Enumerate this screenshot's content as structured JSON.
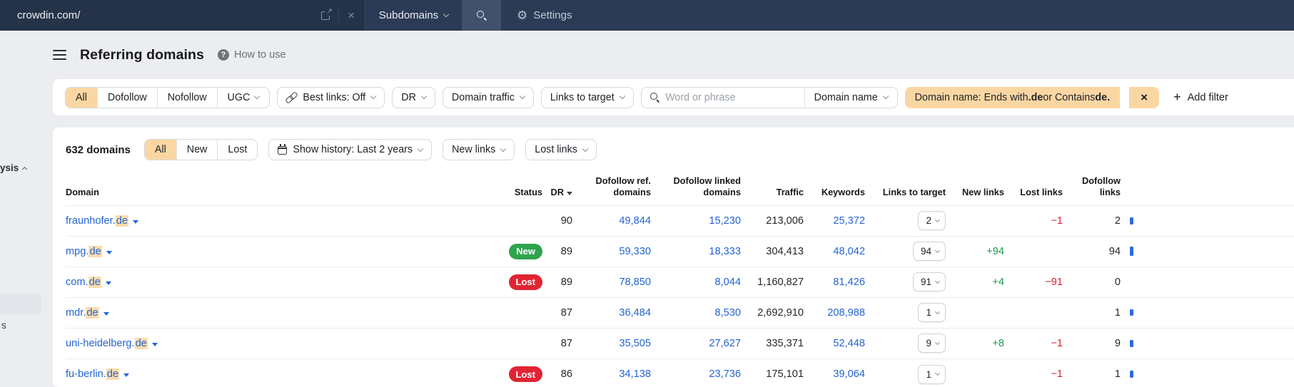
{
  "topbar": {
    "url_value": "crowdin.com/",
    "mode_label": "Subdomains",
    "settings_label": "Settings"
  },
  "icons": {
    "external_arrow": "↗",
    "close": "×",
    "gear": "⚙",
    "question": "?",
    "plus": "+"
  },
  "sidebar": {
    "collapsed_label": "ysis",
    "collapsed_item": "s"
  },
  "header": {
    "title": "Referring domains",
    "help_label": "How to use"
  },
  "filters": {
    "tabs": [
      {
        "label": "All",
        "active": true
      },
      {
        "label": "Dofollow",
        "active": false
      },
      {
        "label": "Nofollow",
        "active": false
      },
      {
        "label": "UGC",
        "active": false
      }
    ],
    "best_links_label": "Best links: Off",
    "dr_label": "DR",
    "domain_traffic_label": "Domain traffic",
    "links_to_target_label": "Links to target",
    "search_placeholder": "Word or phrase",
    "domain_name_label": "Domain name",
    "active_filter": {
      "part1": "Domain name: Ends with ",
      "bold1": ".de",
      "part2": " or Contains ",
      "bold2": "de."
    },
    "add_filter_label": "Add filter"
  },
  "toolbar": {
    "count": "632 domains",
    "tabs": [
      {
        "label": "All",
        "active": true
      },
      {
        "label": "New",
        "active": false
      },
      {
        "label": "Lost",
        "active": false
      }
    ],
    "show_history_label": "Show history: Last 2 years",
    "new_links_label": "New links",
    "lost_links_label": "Lost links"
  },
  "table": {
    "columns": [
      {
        "label": "Domain"
      },
      {
        "label": "Status"
      },
      {
        "label": "DR"
      },
      {
        "label": "Dofollow ref.\ndomains"
      },
      {
        "label": "Dofollow linked\ndomains"
      },
      {
        "label": "Traffic"
      },
      {
        "label": "Keywords"
      },
      {
        "label": "Links to target"
      },
      {
        "label": "New links"
      },
      {
        "label": "Lost links"
      },
      {
        "label": "Dofollow\nlinks"
      }
    ],
    "rows": [
      {
        "domain_base": "fraunhofer.",
        "domain_highlight": "de",
        "status": "",
        "dr": "90",
        "dofollow_ref_domains": "49,844",
        "dofollow_linked_domains": "15,230",
        "traffic": "213,006",
        "keywords": "25,372",
        "links_to_target": "2",
        "new_links": "",
        "lost_links": "−1",
        "dofollow_links": "2",
        "bar": 10
      },
      {
        "domain_base": "mpg.",
        "domain_highlight": "de",
        "status": "New",
        "dr": "89",
        "dofollow_ref_domains": "59,330",
        "dofollow_linked_domains": "18,333",
        "traffic": "304,413",
        "keywords": "48,042",
        "links_to_target": "94",
        "new_links": "+94",
        "lost_links": "",
        "dofollow_links": "94",
        "bar": 13
      },
      {
        "domain_base": "com.",
        "domain_highlight": "de",
        "status": "Lost",
        "dr": "89",
        "dofollow_ref_domains": "78,850",
        "dofollow_linked_domains": "8,044",
        "traffic": "1,160,827",
        "keywords": "81,426",
        "links_to_target": "91",
        "new_links": "+4",
        "lost_links": "−91",
        "dofollow_links": "0",
        "bar": 0
      },
      {
        "domain_base": "mdr.",
        "domain_highlight": "de",
        "status": "",
        "dr": "87",
        "dofollow_ref_domains": "36,484",
        "dofollow_linked_domains": "8,530",
        "traffic": "2,692,910",
        "keywords": "208,988",
        "links_to_target": "1",
        "new_links": "",
        "lost_links": "",
        "dofollow_links": "1",
        "bar": 9
      },
      {
        "domain_base": "uni-heidelberg.",
        "domain_highlight": "de",
        "status": "",
        "dr": "87",
        "dofollow_ref_domains": "35,505",
        "dofollow_linked_domains": "27,627",
        "traffic": "335,371",
        "keywords": "52,448",
        "links_to_target": "9",
        "new_links": "+8",
        "lost_links": "−1",
        "dofollow_links": "9",
        "bar": 10
      },
      {
        "domain_base": "fu-berlin.",
        "domain_highlight": "de",
        "status": "Lost",
        "dr": "86",
        "dofollow_ref_domains": "34,138",
        "dofollow_linked_domains": "23,736",
        "traffic": "175,101",
        "keywords": "39,064",
        "links_to_target": "1",
        "new_links": "",
        "lost_links": "−1",
        "dofollow_links": "1",
        "bar": 10
      }
    ]
  },
  "colors": {
    "topbar_bg": "#2c3b55",
    "accent_peach": "#fad7a2",
    "highlight_peach": "#fbdcae",
    "link_blue": "#2464d2",
    "badge_new_green": "#2da44e",
    "badge_lost_red": "#e02434",
    "positive_green": "#189a4a",
    "negative_red": "#d92530"
  }
}
